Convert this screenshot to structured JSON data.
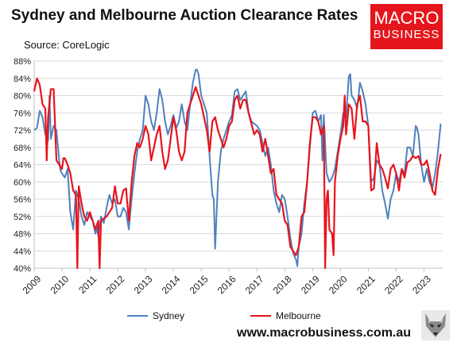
{
  "header": {
    "title": "Sydney and Melbourne Auction Clearance Rates",
    "source": "Source: CoreLogic"
  },
  "logo": {
    "line1": "MACRO",
    "line2": "BUSINESS"
  },
  "website": "www.macrobusiness.com.au",
  "colors": {
    "sydney": "#4f81bd",
    "melbourne": "#e8141c",
    "brand": "#e4161c"
  },
  "icons": {
    "mascot": "fox-icon"
  },
  "chart_data": {
    "type": "line",
    "title": "Sydney and Melbourne Auction Clearance Rates",
    "xlabel": "",
    "ylabel": "",
    "xlim": [
      2009,
      2023.67
    ],
    "ylim": [
      40,
      88
    ],
    "yticks": [
      "40%",
      "44%",
      "48%",
      "52%",
      "56%",
      "60%",
      "64%",
      "68%",
      "72%",
      "76%",
      "80%",
      "84%",
      "88%"
    ],
    "xticks": [
      "2009",
      "2010",
      "2011",
      "2012",
      "2013",
      "2014",
      "2015",
      "2016",
      "2017",
      "2018",
      "2019",
      "2020",
      "2021",
      "2022",
      "2023"
    ],
    "grid": true,
    "legend": "bottom",
    "series": [
      {
        "name": "Sydney",
        "points": [
          [
            2009.0,
            72
          ],
          [
            2009.1,
            72.5
          ],
          [
            2009.2,
            76.5
          ],
          [
            2009.3,
            75
          ],
          [
            2009.4,
            71
          ],
          [
            2009.5,
            69.5
          ],
          [
            2009.55,
            80
          ],
          [
            2009.6,
            70
          ],
          [
            2009.7,
            73
          ],
          [
            2009.8,
            72
          ],
          [
            2009.9,
            65
          ],
          [
            2009.95,
            62.5
          ],
          [
            2010.0,
            62
          ],
          [
            2010.1,
            61
          ],
          [
            2010.2,
            63
          ],
          [
            2010.3,
            53
          ],
          [
            2010.4,
            49
          ],
          [
            2010.5,
            58
          ],
          [
            2010.6,
            56
          ],
          [
            2010.7,
            52
          ],
          [
            2010.8,
            50
          ],
          [
            2010.9,
            53
          ],
          [
            2011.0,
            52
          ],
          [
            2011.1,
            51
          ],
          [
            2011.2,
            48
          ],
          [
            2011.25,
            49.5
          ],
          [
            2011.3,
            47.5
          ],
          [
            2011.4,
            52
          ],
          [
            2011.5,
            50.5
          ],
          [
            2011.6,
            54
          ],
          [
            2011.7,
            57
          ],
          [
            2011.8,
            55
          ],
          [
            2011.9,
            56
          ],
          [
            2012.0,
            52
          ],
          [
            2012.1,
            52
          ],
          [
            2012.2,
            54
          ],
          [
            2012.3,
            53
          ],
          [
            2012.4,
            49
          ],
          [
            2012.5,
            56
          ],
          [
            2012.6,
            62
          ],
          [
            2012.7,
            67
          ],
          [
            2012.8,
            70
          ],
          [
            2012.9,
            72
          ],
          [
            2013.0,
            80
          ],
          [
            2013.1,
            78
          ],
          [
            2013.2,
            74
          ],
          [
            2013.3,
            72
          ],
          [
            2013.4,
            76
          ],
          [
            2013.5,
            81.5
          ],
          [
            2013.6,
            79
          ],
          [
            2013.7,
            74
          ],
          [
            2013.8,
            71
          ],
          [
            2013.9,
            73
          ],
          [
            2014.0,
            75.5
          ],
          [
            2014.1,
            72.5
          ],
          [
            2014.2,
            74
          ],
          [
            2014.3,
            78
          ],
          [
            2014.4,
            74
          ],
          [
            2014.5,
            72
          ],
          [
            2014.6,
            78
          ],
          [
            2014.7,
            83
          ],
          [
            2014.8,
            86
          ],
          [
            2014.85,
            86
          ],
          [
            2014.9,
            85
          ],
          [
            2015.0,
            80
          ],
          [
            2015.1,
            78
          ],
          [
            2015.2,
            76
          ],
          [
            2015.3,
            66
          ],
          [
            2015.4,
            57
          ],
          [
            2015.45,
            56
          ],
          [
            2015.5,
            44.5
          ],
          [
            2015.6,
            60
          ],
          [
            2015.7,
            67
          ],
          [
            2015.8,
            70
          ],
          [
            2015.9,
            72
          ],
          [
            2016.0,
            74
          ],
          [
            2016.1,
            75.5
          ],
          [
            2016.2,
            81
          ],
          [
            2016.3,
            81.5
          ],
          [
            2016.4,
            79
          ],
          [
            2016.5,
            80
          ],
          [
            2016.6,
            81
          ],
          [
            2016.7,
            76
          ],
          [
            2016.8,
            74
          ],
          [
            2016.9,
            73.5
          ],
          [
            2017.0,
            73
          ],
          [
            2017.1,
            72
          ],
          [
            2017.2,
            69
          ],
          [
            2017.3,
            66
          ],
          [
            2017.4,
            68
          ],
          [
            2017.5,
            64
          ],
          [
            2017.6,
            58
          ],
          [
            2017.7,
            55
          ],
          [
            2017.8,
            53
          ],
          [
            2017.9,
            57
          ],
          [
            2018.0,
            56
          ],
          [
            2018.1,
            52
          ],
          [
            2018.2,
            47
          ],
          [
            2018.3,
            43.5
          ],
          [
            2018.4,
            42
          ],
          [
            2018.45,
            40.5
          ],
          [
            2018.5,
            45
          ],
          [
            2018.6,
            48
          ],
          [
            2018.7,
            55
          ],
          [
            2018.8,
            60
          ],
          [
            2018.9,
            68
          ],
          [
            2019.0,
            76
          ],
          [
            2019.1,
            76.5
          ],
          [
            2019.2,
            74
          ],
          [
            2019.3,
            75.5
          ],
          [
            2019.35,
            65
          ],
          [
            2019.4,
            75.5
          ],
          [
            2019.5,
            62
          ],
          [
            2019.6,
            60
          ],
          [
            2019.7,
            61
          ],
          [
            2019.8,
            63
          ],
          [
            2019.9,
            67
          ],
          [
            2020.0,
            71
          ],
          [
            2020.1,
            76
          ],
          [
            2020.2,
            75
          ],
          [
            2020.3,
            84.5
          ],
          [
            2020.35,
            85
          ],
          [
            2020.4,
            80
          ],
          [
            2020.5,
            79
          ],
          [
            2020.6,
            77
          ],
          [
            2020.7,
            83
          ],
          [
            2020.8,
            81
          ],
          [
            2020.9,
            78
          ],
          [
            2021.0,
            73
          ],
          [
            2021.1,
            60
          ],
          [
            2021.2,
            61
          ],
          [
            2021.3,
            65
          ],
          [
            2021.4,
            64
          ],
          [
            2021.5,
            58
          ],
          [
            2021.6,
            55
          ],
          [
            2021.7,
            51.5
          ],
          [
            2021.8,
            56
          ],
          [
            2021.9,
            58
          ],
          [
            2022.0,
            62
          ],
          [
            2022.1,
            60
          ],
          [
            2022.2,
            63
          ],
          [
            2022.3,
            62
          ],
          [
            2022.4,
            68
          ],
          [
            2022.5,
            68
          ],
          [
            2022.6,
            66
          ],
          [
            2022.7,
            73
          ],
          [
            2022.75,
            72.5
          ],
          [
            2022.8,
            71
          ],
          [
            2022.9,
            64
          ],
          [
            2023.0,
            60
          ],
          [
            2023.1,
            63
          ],
          [
            2023.2,
            60
          ],
          [
            2023.3,
            58.5
          ],
          [
            2023.4,
            62
          ],
          [
            2023.5,
            67
          ],
          [
            2023.6,
            73.5
          ]
        ]
      },
      {
        "name": "Melbourne",
        "points": [
          [
            2009.0,
            81
          ],
          [
            2009.1,
            84
          ],
          [
            2009.2,
            82.5
          ],
          [
            2009.3,
            78
          ],
          [
            2009.4,
            77
          ],
          [
            2009.45,
            65
          ],
          [
            2009.5,
            75
          ],
          [
            2009.6,
            81.5
          ],
          [
            2009.7,
            81.5
          ],
          [
            2009.8,
            65
          ],
          [
            2009.9,
            64
          ],
          [
            2010.0,
            63
          ],
          [
            2010.05,
            65.5
          ],
          [
            2010.1,
            65.5
          ],
          [
            2010.2,
            64
          ],
          [
            2010.3,
            62
          ],
          [
            2010.4,
            58
          ],
          [
            2010.5,
            57
          ],
          [
            2010.55,
            39
          ],
          [
            2010.6,
            59
          ],
          [
            2010.7,
            55
          ],
          [
            2010.8,
            52
          ],
          [
            2010.9,
            51
          ],
          [
            2011.0,
            53
          ],
          [
            2011.1,
            51
          ],
          [
            2011.2,
            49
          ],
          [
            2011.3,
            51
          ],
          [
            2011.35,
            40
          ],
          [
            2011.4,
            51
          ],
          [
            2011.5,
            51.5
          ],
          [
            2011.6,
            52
          ],
          [
            2011.7,
            53
          ],
          [
            2011.8,
            54
          ],
          [
            2011.9,
            59
          ],
          [
            2012.0,
            55
          ],
          [
            2012.1,
            55
          ],
          [
            2012.2,
            58
          ],
          [
            2012.3,
            58.5
          ],
          [
            2012.4,
            51
          ],
          [
            2012.5,
            60
          ],
          [
            2012.6,
            66
          ],
          [
            2012.7,
            69
          ],
          [
            2012.8,
            68
          ],
          [
            2012.9,
            70
          ],
          [
            2013.0,
            73
          ],
          [
            2013.1,
            71
          ],
          [
            2013.2,
            65
          ],
          [
            2013.3,
            68
          ],
          [
            2013.4,
            71
          ],
          [
            2013.5,
            73
          ],
          [
            2013.6,
            67
          ],
          [
            2013.7,
            63
          ],
          [
            2013.8,
            65
          ],
          [
            2013.9,
            70
          ],
          [
            2014.0,
            75
          ],
          [
            2014.1,
            72
          ],
          [
            2014.2,
            67
          ],
          [
            2014.3,
            65
          ],
          [
            2014.4,
            67
          ],
          [
            2014.5,
            76
          ],
          [
            2014.6,
            78
          ],
          [
            2014.7,
            80
          ],
          [
            2014.8,
            82
          ],
          [
            2014.9,
            80
          ],
          [
            2015.0,
            78
          ],
          [
            2015.1,
            75
          ],
          [
            2015.2,
            72
          ],
          [
            2015.3,
            67
          ],
          [
            2015.4,
            74
          ],
          [
            2015.5,
            75
          ],
          [
            2015.6,
            72
          ],
          [
            2015.7,
            70
          ],
          [
            2015.8,
            68
          ],
          [
            2015.9,
            70
          ],
          [
            2016.0,
            73
          ],
          [
            2016.1,
            74
          ],
          [
            2016.2,
            79
          ],
          [
            2016.3,
            80
          ],
          [
            2016.4,
            77
          ],
          [
            2016.5,
            79
          ],
          [
            2016.6,
            79
          ],
          [
            2016.7,
            76
          ],
          [
            2016.8,
            73.5
          ],
          [
            2016.9,
            71
          ],
          [
            2017.0,
            72
          ],
          [
            2017.1,
            71
          ],
          [
            2017.2,
            67
          ],
          [
            2017.3,
            70
          ],
          [
            2017.4,
            66
          ],
          [
            2017.5,
            62
          ],
          [
            2017.6,
            63
          ],
          [
            2017.7,
            57
          ],
          [
            2017.8,
            56
          ],
          [
            2017.9,
            55
          ],
          [
            2018.0,
            51
          ],
          [
            2018.1,
            50
          ],
          [
            2018.2,
            45
          ],
          [
            2018.3,
            44
          ],
          [
            2018.4,
            43
          ],
          [
            2018.5,
            45
          ],
          [
            2018.6,
            52
          ],
          [
            2018.7,
            53
          ],
          [
            2018.8,
            60
          ],
          [
            2018.9,
            69
          ],
          [
            2019.0,
            75
          ],
          [
            2019.1,
            75
          ],
          [
            2019.2,
            74
          ],
          [
            2019.3,
            71
          ],
          [
            2019.4,
            73
          ],
          [
            2019.45,
            40
          ],
          [
            2019.5,
            56
          ],
          [
            2019.55,
            58
          ],
          [
            2019.6,
            49
          ],
          [
            2019.7,
            48
          ],
          [
            2019.75,
            43
          ],
          [
            2019.8,
            60
          ],
          [
            2019.9,
            66
          ],
          [
            2020.0,
            70
          ],
          [
            2020.1,
            73
          ],
          [
            2020.15,
            80
          ],
          [
            2020.2,
            71
          ],
          [
            2020.3,
            78
          ],
          [
            2020.4,
            77
          ],
          [
            2020.5,
            70
          ],
          [
            2020.6,
            78
          ],
          [
            2020.7,
            80
          ],
          [
            2020.8,
            74
          ],
          [
            2020.9,
            74
          ],
          [
            2021.0,
            73
          ],
          [
            2021.1,
            58
          ],
          [
            2021.2,
            58.5
          ],
          [
            2021.3,
            69
          ],
          [
            2021.4,
            64
          ],
          [
            2021.5,
            63
          ],
          [
            2021.6,
            61
          ],
          [
            2021.7,
            58.5
          ],
          [
            2021.8,
            63
          ],
          [
            2021.9,
            64
          ],
          [
            2022.0,
            62
          ],
          [
            2022.1,
            58
          ],
          [
            2022.2,
            63
          ],
          [
            2022.3,
            61
          ],
          [
            2022.4,
            64.5
          ],
          [
            2022.5,
            65
          ],
          [
            2022.6,
            66
          ],
          [
            2022.7,
            65.5
          ],
          [
            2022.8,
            66
          ],
          [
            2022.9,
            64
          ],
          [
            2023.0,
            64
          ],
          [
            2023.1,
            65
          ],
          [
            2023.2,
            62
          ],
          [
            2023.3,
            58
          ],
          [
            2023.4,
            57
          ],
          [
            2023.5,
            63
          ],
          [
            2023.6,
            66.5
          ]
        ]
      }
    ]
  }
}
